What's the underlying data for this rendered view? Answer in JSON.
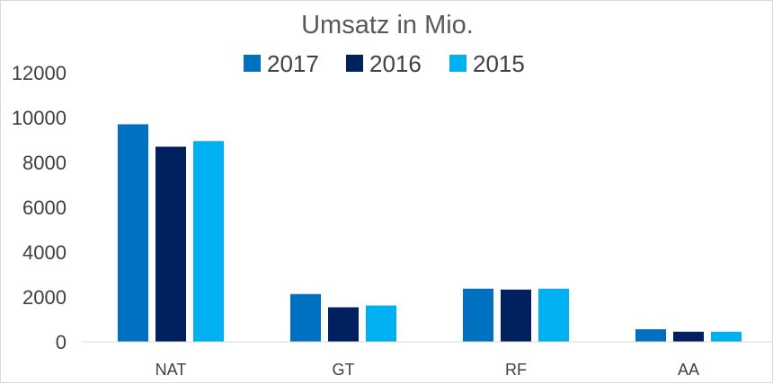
{
  "chart_data": {
    "type": "bar",
    "title": "Umsatz in Mio.",
    "xlabel": "",
    "ylabel": "",
    "categories": [
      "NAT",
      "GT",
      "RF",
      "AA"
    ],
    "series": [
      {
        "name": "2017",
        "color": "#0070c0",
        "values": [
          9700,
          2130,
          2370,
          560
        ]
      },
      {
        "name": "2016",
        "color": "#002060",
        "values": [
          8700,
          1540,
          2330,
          450
        ]
      },
      {
        "name": "2015",
        "color": "#00b0f0",
        "values": [
          8950,
          1620,
          2370,
          450
        ]
      }
    ],
    "ylim": [
      0,
      12000
    ],
    "yticks": [
      0,
      2000,
      4000,
      6000,
      8000,
      10000,
      12000
    ],
    "grid": false,
    "legend_position": "top"
  }
}
